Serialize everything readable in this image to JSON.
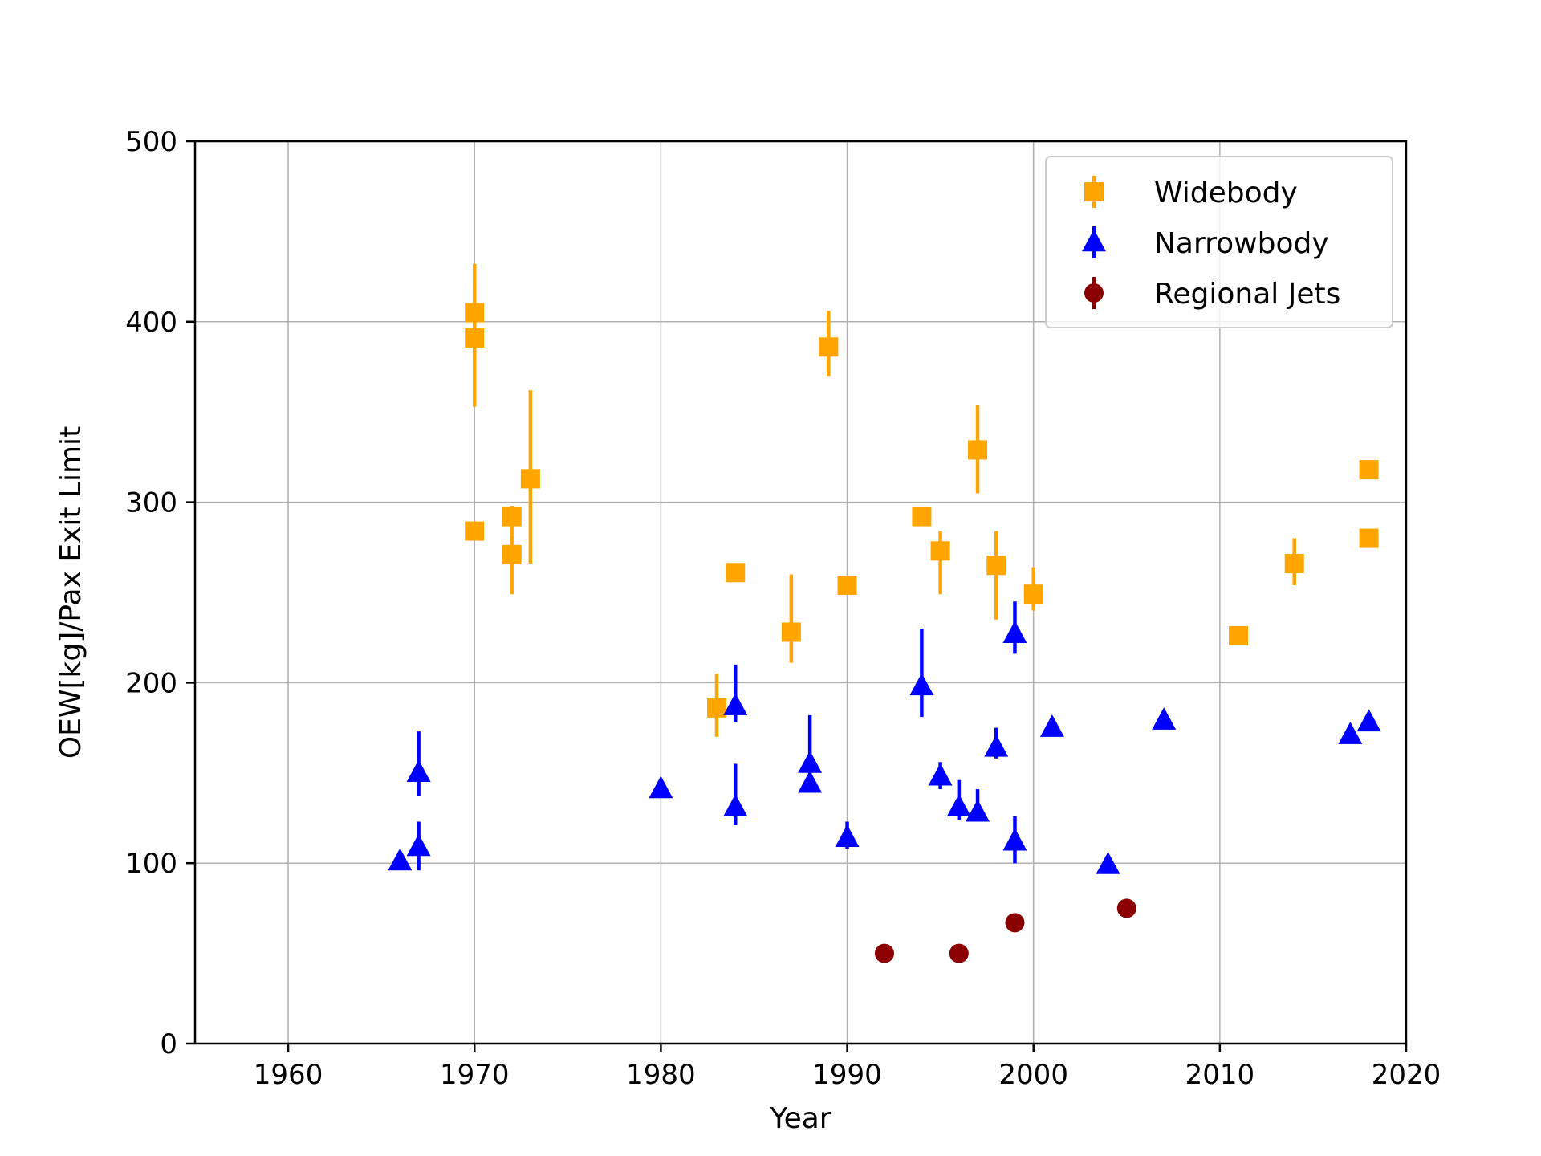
{
  "chart_data": {
    "type": "scatter",
    "title": "",
    "xlabel": "Year",
    "ylabel": "OEW[kg]/Pax Exit Limit",
    "xlim": [
      1955,
      2020
    ],
    "ylim": [
      0,
      500
    ],
    "xticks": [
      1960,
      1970,
      1980,
      1990,
      2000,
      2010,
      2020
    ],
    "yticks": [
      0,
      100,
      200,
      300,
      400,
      500
    ],
    "xtick_labels": [
      "1960",
      "1970",
      "1980",
      "1990",
      "2000",
      "2010",
      "2020"
    ],
    "ytick_labels": [
      "0",
      "100",
      "200",
      "300",
      "400",
      "500"
    ],
    "grid": true,
    "legend_position": "top-right",
    "series": [
      {
        "name": "Widebody",
        "color": "#FFA500",
        "marker": "square",
        "points": [
          {
            "x": 1970,
            "y": 405,
            "lo": 380,
            "hi": 432
          },
          {
            "x": 1970,
            "y": 391,
            "lo": 353,
            "hi": 420
          },
          {
            "x": 1970,
            "y": 284,
            "lo": 284,
            "hi": 284
          },
          {
            "x": 1972,
            "y": 292,
            "lo": 282,
            "hi": 298
          },
          {
            "x": 1972,
            "y": 271,
            "lo": 249,
            "hi": 282
          },
          {
            "x": 1973,
            "y": 313,
            "lo": 266,
            "hi": 362
          },
          {
            "x": 1983,
            "y": 186,
            "lo": 170,
            "hi": 205
          },
          {
            "x": 1984,
            "y": 261,
            "lo": 261,
            "hi": 261
          },
          {
            "x": 1987,
            "y": 228,
            "lo": 211,
            "hi": 260
          },
          {
            "x": 1989,
            "y": 386,
            "lo": 370,
            "hi": 406
          },
          {
            "x": 1990,
            "y": 254,
            "lo": 254,
            "hi": 254
          },
          {
            "x": 1994,
            "y": 292,
            "lo": 292,
            "hi": 292
          },
          {
            "x": 1995,
            "y": 273,
            "lo": 249,
            "hi": 284
          },
          {
            "x": 1997,
            "y": 329,
            "lo": 305,
            "hi": 354
          },
          {
            "x": 1998,
            "y": 265,
            "lo": 235,
            "hi": 284
          },
          {
            "x": 2000,
            "y": 249,
            "lo": 240,
            "hi": 264
          },
          {
            "x": 2011,
            "y": 226,
            "lo": 226,
            "hi": 226
          },
          {
            "x": 2014,
            "y": 266,
            "lo": 254,
            "hi": 280
          },
          {
            "x": 2018,
            "y": 318,
            "lo": 318,
            "hi": 318
          },
          {
            "x": 2018,
            "y": 280,
            "lo": 280,
            "hi": 280
          }
        ]
      },
      {
        "name": "Narrowbody",
        "color": "#0000FF",
        "marker": "triangle",
        "points": [
          {
            "x": 1966,
            "y": 101,
            "lo": 101,
            "hi": 101
          },
          {
            "x": 1967,
            "y": 150,
            "lo": 137,
            "hi": 173
          },
          {
            "x": 1967,
            "y": 109,
            "lo": 96,
            "hi": 123
          },
          {
            "x": 1980,
            "y": 141,
            "lo": 141,
            "hi": 141
          },
          {
            "x": 1984,
            "y": 187,
            "lo": 178,
            "hi": 210
          },
          {
            "x": 1984,
            "y": 131,
            "lo": 121,
            "hi": 155
          },
          {
            "x": 1988,
            "y": 155,
            "lo": 148,
            "hi": 182
          },
          {
            "x": 1988,
            "y": 144,
            "lo": 144,
            "hi": 144
          },
          {
            "x": 1990,
            "y": 114,
            "lo": 108,
            "hi": 123
          },
          {
            "x": 1994,
            "y": 198,
            "lo": 181,
            "hi": 230
          },
          {
            "x": 1995,
            "y": 148,
            "lo": 141,
            "hi": 156
          },
          {
            "x": 1996,
            "y": 131,
            "lo": 124,
            "hi": 146
          },
          {
            "x": 1997,
            "y": 128,
            "lo": 124,
            "hi": 141
          },
          {
            "x": 1998,
            "y": 164,
            "lo": 158,
            "hi": 175
          },
          {
            "x": 1999,
            "y": 227,
            "lo": 216,
            "hi": 245
          },
          {
            "x": 1999,
            "y": 112,
            "lo": 100,
            "hi": 126
          },
          {
            "x": 2001,
            "y": 175,
            "lo": 175,
            "hi": 175
          },
          {
            "x": 2004,
            "y": 99,
            "lo": 99,
            "hi": 99
          },
          {
            "x": 2007,
            "y": 179,
            "lo": 179,
            "hi": 179
          },
          {
            "x": 2017,
            "y": 171,
            "lo": 171,
            "hi": 171
          },
          {
            "x": 2018,
            "y": 178,
            "lo": 178,
            "hi": 178
          }
        ]
      },
      {
        "name": "Regional Jets",
        "color": "#8B0000",
        "marker": "circle",
        "points": [
          {
            "x": 1992,
            "y": 50,
            "lo": 50,
            "hi": 50
          },
          {
            "x": 1996,
            "y": 50,
            "lo": 50,
            "hi": 50
          },
          {
            "x": 1999,
            "y": 67,
            "lo": 67,
            "hi": 67
          },
          {
            "x": 2005,
            "y": 75,
            "lo": 75,
            "hi": 75
          }
        ]
      }
    ]
  }
}
